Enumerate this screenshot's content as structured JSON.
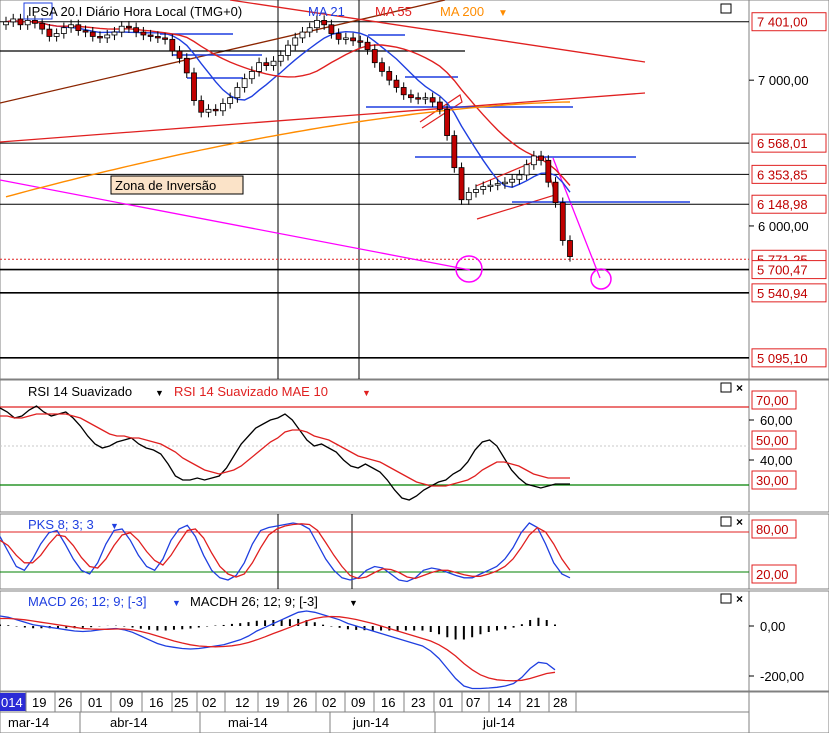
{
  "chart_data": [
    {
      "type": "candlestick",
      "legend": {
        "instrument": "IPSA 20.I Diário Hora Local (TMG+0)",
        "ma21": "MA 21",
        "ma55": "MA 55",
        "ma200": "MA 200"
      },
      "y_ticks": [
        "7 000,00",
        "6 000,00"
      ],
      "price_tags": [
        "7 401,00",
        "6 568,01",
        "6 353,85",
        "6 148,98",
        "5 771,25",
        "5 700,47",
        "5 540,94",
        "5 095,10"
      ],
      "annotation": "Zona de  Inversão",
      "ylim": [
        4950,
        7550
      ],
      "closes": [
        7400,
        7420,
        7380,
        7410,
        7390,
        7350,
        7300,
        7320,
        7360,
        7380,
        7340,
        7330,
        7300,
        7290,
        7310,
        7330,
        7370,
        7360,
        7330,
        7310,
        7300,
        7290,
        7280,
        7200,
        7150,
        7050,
        6860,
        6780,
        6800,
        6790,
        6840,
        6880,
        6950,
        7010,
        7060,
        7120,
        7100,
        7130,
        7170,
        7240,
        7290,
        7330,
        7360,
        7410,
        7380,
        7320,
        7280,
        7290,
        7270,
        7260,
        7210,
        7120,
        7060,
        7000,
        6950,
        6900,
        6880,
        6870,
        6880,
        6850,
        6800,
        6620,
        6400,
        6180,
        6230,
        6250,
        6270,
        6280,
        6290,
        6300,
        6320,
        6350,
        6420,
        6480,
        6450,
        6300,
        6160,
        5900,
        5790
      ],
      "colors": {
        "ma21": "#1f3fe0",
        "ma55": "#e02020",
        "ma200": "#ff8c00",
        "up_candle": "#ffffff",
        "down_candle": "#c00000",
        "circle": "#ff00ff"
      }
    },
    {
      "type": "line",
      "title": "RSI 14 Suavizado",
      "series": [
        {
          "name": "RSI 14 Suavizado"
        },
        {
          "name": "RSI 14 Suavizado MAE 10"
        }
      ],
      "y_ticks": [
        "70,00",
        "60,00",
        "50,00",
        "40,00",
        "30,00"
      ],
      "ylim": [
        14,
        80
      ],
      "rsi": [
        66,
        64,
        61,
        62,
        65,
        67,
        64,
        62,
        63,
        64,
        61,
        57,
        52,
        48,
        46,
        47,
        49,
        50,
        51,
        48,
        46,
        45,
        43,
        38,
        32,
        30,
        30,
        31,
        30,
        31,
        32,
        36,
        42,
        48,
        52,
        56,
        58,
        60,
        61,
        63,
        60,
        55,
        50,
        47,
        48,
        46,
        44,
        40,
        37,
        36,
        38,
        36,
        34,
        30,
        25,
        21,
        20,
        22,
        25,
        27,
        29,
        30,
        33,
        35,
        39,
        45,
        49,
        50,
        47,
        41,
        35,
        31,
        28,
        27,
        26,
        27,
        28,
        28,
        28
      ],
      "mae": [
        62,
        62,
        61,
        61,
        62,
        63,
        63,
        63,
        63,
        63,
        62,
        61,
        59,
        57,
        55,
        53,
        52,
        52,
        51,
        51,
        50,
        49,
        48,
        46,
        44,
        41,
        39,
        37,
        35,
        34,
        33,
        34,
        35,
        37,
        40,
        43,
        46,
        49,
        51,
        54,
        55,
        55,
        54,
        52,
        51,
        50,
        48,
        46,
        44,
        42,
        41,
        40,
        39,
        37,
        35,
        33,
        31,
        29,
        28,
        27,
        27,
        27,
        28,
        29,
        30,
        32,
        35,
        37,
        39,
        39,
        38,
        37,
        35,
        33,
        32,
        31,
        31,
        31,
        31
      ]
    },
    {
      "type": "line",
      "title": "PKS 8; 3; 3",
      "y_ticks": [
        "80,00",
        "20,00"
      ],
      "ylim": [
        0,
        100
      ],
      "k": [
        70,
        50,
        30,
        25,
        40,
        60,
        75,
        78,
        60,
        40,
        25,
        20,
        35,
        60,
        78,
        80,
        65,
        45,
        30,
        25,
        40,
        65,
        80,
        85,
        70,
        45,
        25,
        15,
        12,
        18,
        35,
        60,
        78,
        82,
        84,
        86,
        88,
        86,
        80,
        60,
        40,
        25,
        15,
        12,
        15,
        25,
        30,
        28,
        20,
        12,
        10,
        15,
        25,
        28,
        26,
        22,
        18,
        15,
        15,
        20,
        25,
        30,
        40,
        55,
        75,
        88,
        82,
        60,
        35,
        20,
        15
      ],
      "d": [
        65,
        58,
        45,
        35,
        35,
        45,
        60,
        72,
        70,
        58,
        42,
        30,
        28,
        40,
        58,
        72,
        75,
        65,
        50,
        38,
        32,
        45,
        62,
        78,
        80,
        68,
        48,
        30,
        20,
        16,
        20,
        35,
        55,
        72,
        80,
        84,
        86,
        87,
        86,
        78,
        62,
        45,
        30,
        18,
        14,
        16,
        22,
        27,
        26,
        22,
        16,
        14,
        18,
        22,
        25,
        25,
        22,
        19,
        17,
        17,
        20,
        24,
        30,
        40,
        55,
        72,
        82,
        76,
        60,
        40,
        25
      ],
      "colors": {
        "k": "#1f3fe0",
        "d": "#e02020"
      }
    },
    {
      "type": "bar_line",
      "title": "MACD 26; 12; 9; [-3]",
      "histogram_title": "MACDH 26; 12; 9; [-3]",
      "y_ticks": [
        "0,00",
        "-200,00"
      ],
      "ylim": [
        -260,
        140
      ],
      "macd": [
        40,
        35,
        25,
        15,
        5,
        0,
        -5,
        -10,
        -15,
        -20,
        -22,
        -20,
        -15,
        -12,
        -10,
        -15,
        -25,
        -40,
        -55,
        -70,
        -80,
        -85,
        -90,
        -92,
        -90,
        -85,
        -80,
        -75,
        -65,
        -55,
        -40,
        -20,
        -5,
        10,
        25,
        40,
        55,
        60,
        55,
        45,
        35,
        25,
        10,
        0,
        -10,
        -20,
        -30,
        -40,
        -50,
        -60,
        -70,
        -80,
        -100,
        -130,
        -170,
        -210,
        -240,
        -250,
        -250,
        -248,
        -245,
        -240,
        -230,
        -205,
        -170,
        -145,
        -150,
        -175
      ],
      "signal": [
        30,
        30,
        28,
        25,
        20,
        15,
        10,
        5,
        0,
        -5,
        -10,
        -12,
        -13,
        -13,
        -12,
        -12,
        -15,
        -22,
        -30,
        -40,
        -50,
        -60,
        -68,
        -75,
        -80,
        -82,
        -83,
        -82,
        -79,
        -74,
        -66,
        -55,
        -43,
        -30,
        -18,
        -5,
        8,
        20,
        30,
        36,
        38,
        37,
        32,
        26,
        18,
        10,
        0,
        -10,
        -20,
        -30,
        -40,
        -50,
        -60,
        -75,
        -95,
        -120,
        -150,
        -175,
        -195,
        -208,
        -215,
        -218,
        -219,
        -217,
        -210,
        -200,
        -190,
        -185
      ],
      "colors": {
        "macd": "#1f3fe0",
        "signal": "#e02020"
      }
    }
  ],
  "x_axis": {
    "days": [
      "014",
      "19",
      "26",
      "01",
      "09",
      "16",
      "25",
      "02",
      "12",
      "19",
      "26",
      "02",
      "09",
      "16",
      "23",
      "01",
      "07",
      "14",
      "21",
      "28"
    ],
    "months": [
      "mar-14",
      "abr-14",
      "mai-14",
      "jun-14",
      "jul-14"
    ]
  },
  "icons": [
    "window-restore-icon",
    "close-icon",
    "dropdown-arrow-icon"
  ]
}
